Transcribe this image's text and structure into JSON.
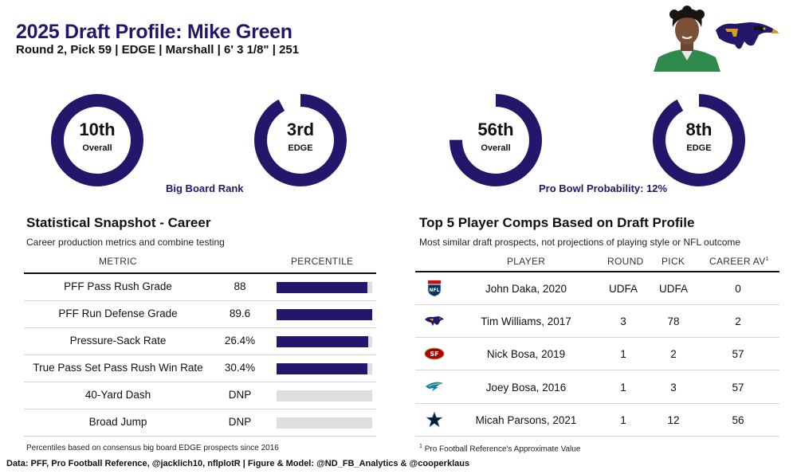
{
  "header": {
    "title": "2025 Draft Profile: Mike Green",
    "subtitle": "Round 2, Pick 59 | EDGE | Marshall | 6' 3 1/8\" | 251"
  },
  "colors": {
    "accent": "#24176b",
    "track": "#dedede"
  },
  "big_board": {
    "label": "Big Board Rank",
    "donuts": [
      {
        "rank": "10th",
        "sub": "Overall",
        "fill": 1.0
      },
      {
        "rank": "3rd",
        "sub": "EDGE",
        "fill": 0.92
      }
    ]
  },
  "pro_bowl": {
    "label": "Pro Bowl Probability: 12%",
    "donuts": [
      {
        "rank": "56th",
        "sub": "Overall",
        "fill": 0.75
      },
      {
        "rank": "8th",
        "sub": "EDGE",
        "fill": 0.92
      }
    ]
  },
  "snapshot": {
    "title": "Statistical Snapshot - Career",
    "description": "Career production metrics and combine testing",
    "col_metric": "METRIC",
    "col_percentile": "PERCENTILE",
    "rows": [
      {
        "metric": "PFF Pass Rush Grade",
        "value": "88",
        "percentile": 0.95
      },
      {
        "metric": "PFF Run Defense Grade",
        "value": "89.6",
        "percentile": 1.0
      },
      {
        "metric": "Pressure-Sack Rate",
        "value": "26.4%",
        "percentile": 0.96
      },
      {
        "metric": "True Pass Set Pass Rush Win Rate",
        "value": "30.4%",
        "percentile": 0.95
      },
      {
        "metric": "40-Yard Dash",
        "value": "DNP",
        "percentile": 0
      },
      {
        "metric": "Broad Jump",
        "value": "DNP",
        "percentile": 0
      }
    ],
    "note": "Percentiles based on consensus big board EDGE prospects since 2016"
  },
  "comps": {
    "title": "Top 5 Player Comps Based on Draft Profile",
    "description": "Most similar draft prospects, not projections of playing style or NFL outcome",
    "col_player": "PLAYER",
    "col_round": "ROUND",
    "col_pick": "PICK",
    "col_av": "CAREER AV",
    "col_av_sup": "1",
    "rows": [
      {
        "logo": "nfl-shield-icon",
        "player": "John Daka, 2020",
        "round": "UDFA",
        "pick": "UDFA",
        "av": "0"
      },
      {
        "logo": "ravens-logo-icon",
        "player": "Tim Williams, 2017",
        "round": "3",
        "pick": "78",
        "av": "2"
      },
      {
        "logo": "49ers-logo-icon",
        "player": "Nick Bosa, 2019",
        "round": "1",
        "pick": "2",
        "av": "57"
      },
      {
        "logo": "chargers-logo-icon",
        "player": "Joey Bosa, 2016",
        "round": "1",
        "pick": "3",
        "av": "57"
      },
      {
        "logo": "cowboys-star-icon",
        "player": "Micah Parsons, 2021",
        "round": "1",
        "pick": "12",
        "av": "56"
      }
    ],
    "note_sup": "1",
    "note": "Pro Football Reference's Approximate Value"
  },
  "footer": "Data: PFF, Pro Football Reference, @jacklich10, nflplotR | Figure & Model: @ND_FB_Analytics & @cooperklaus"
}
